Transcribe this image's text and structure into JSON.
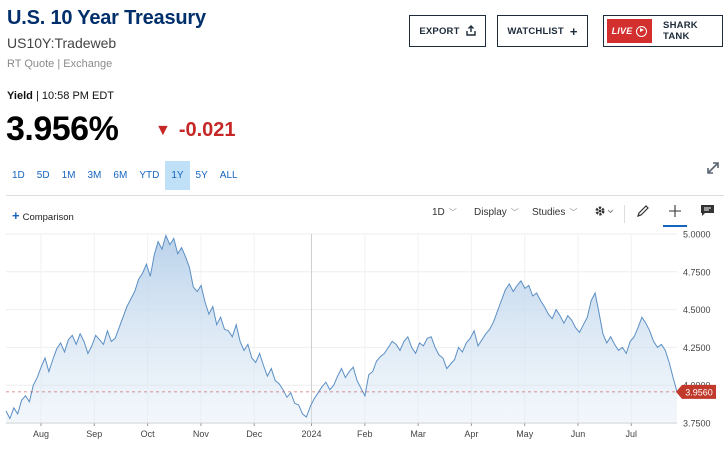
{
  "header": {
    "title": "U.S. 10 Year Treasury",
    "symbol": "US10Y:Tradeweb",
    "quote_source": "RT Quote | Exchange"
  },
  "actions": {
    "export_label": "EXPORT",
    "watchlist_label": "WATCHLIST",
    "live_label": "LIVE",
    "live_show_label": "SHARK TANK"
  },
  "quote": {
    "label": "Yield",
    "time": "10:58 PM EDT",
    "last": "3.956%",
    "change": "-0.021",
    "change_color": "#c62828"
  },
  "ranges": [
    "1D",
    "5D",
    "1M",
    "3M",
    "6M",
    "YTD",
    "1Y",
    "5Y",
    "ALL"
  ],
  "active_range": "1Y",
  "toolbar": {
    "comparison_label": "Comparison",
    "interval_label": "1D",
    "display_label": "Display",
    "studies_label": "Studies",
    "icons": [
      "gear-icon",
      "pencil-icon",
      "crosshair-icon",
      "annotation-icon"
    ]
  },
  "chart_data": {
    "type": "area",
    "y_ticks": [
      "5.0000",
      "4.7500",
      "4.5000",
      "4.2500",
      "4.0000",
      "3.7500"
    ],
    "x_ticks": [
      "Aug",
      "Sep",
      "Oct",
      "Nov",
      "Dec",
      "2024",
      "Feb",
      "Mar",
      "Apr",
      "May",
      "Jun",
      "Jul"
    ],
    "ylim": [
      3.75,
      5.0
    ],
    "last_value_label": "3.9560",
    "last_value": 3.956,
    "line_color": "#5b8fc4",
    "fill_color": "#dbe8f5",
    "marker_color": "#c0392b",
    "series": [
      {
        "values": [
          3.83,
          3.78,
          3.85,
          3.81,
          3.9,
          3.93,
          3.89,
          4.0,
          4.05,
          4.12,
          4.18,
          4.09,
          4.17,
          4.24,
          4.28,
          4.22,
          4.3,
          4.33,
          4.27,
          4.34,
          4.29,
          4.21,
          4.26,
          4.33,
          4.3,
          4.27,
          4.36,
          4.29,
          4.31,
          4.38,
          4.45,
          4.52,
          4.57,
          4.62,
          4.7,
          4.74,
          4.8,
          4.72,
          4.86,
          4.95,
          4.9,
          4.99,
          4.93,
          4.97,
          4.87,
          4.91,
          4.85,
          4.78,
          4.65,
          4.62,
          4.66,
          4.55,
          4.47,
          4.52,
          4.4,
          4.45,
          4.37,
          4.36,
          4.32,
          4.4,
          4.29,
          4.23,
          4.27,
          4.18,
          4.15,
          4.21,
          4.13,
          4.06,
          4.11,
          4.03,
          4.01,
          3.97,
          3.92,
          3.95,
          3.88,
          3.87,
          3.81,
          3.79,
          3.86,
          3.91,
          3.95,
          3.99,
          4.02,
          3.97,
          4.0,
          4.06,
          4.11,
          4.05,
          4.09,
          4.12,
          4.03,
          3.98,
          3.93,
          4.07,
          4.09,
          4.16,
          4.19,
          4.21,
          4.25,
          4.29,
          4.27,
          4.23,
          4.29,
          4.32,
          4.25,
          4.21,
          4.28,
          4.26,
          4.31,
          4.32,
          4.25,
          4.2,
          4.18,
          4.11,
          4.14,
          4.17,
          4.25,
          4.22,
          4.28,
          4.31,
          4.36,
          4.26,
          4.3,
          4.34,
          4.37,
          4.42,
          4.49,
          4.56,
          4.63,
          4.67,
          4.62,
          4.66,
          4.69,
          4.64,
          4.66,
          4.59,
          4.61,
          4.56,
          4.52,
          4.47,
          4.44,
          4.5,
          4.46,
          4.41,
          4.46,
          4.43,
          4.38,
          4.35,
          4.4,
          4.45,
          4.56,
          4.61,
          4.48,
          4.34,
          4.28,
          4.32,
          4.27,
          4.23,
          4.25,
          4.21,
          4.29,
          4.32,
          4.38,
          4.45,
          4.41,
          4.36,
          4.29,
          4.25,
          4.27,
          4.23,
          4.15,
          4.05,
          3.956
        ]
      }
    ]
  }
}
